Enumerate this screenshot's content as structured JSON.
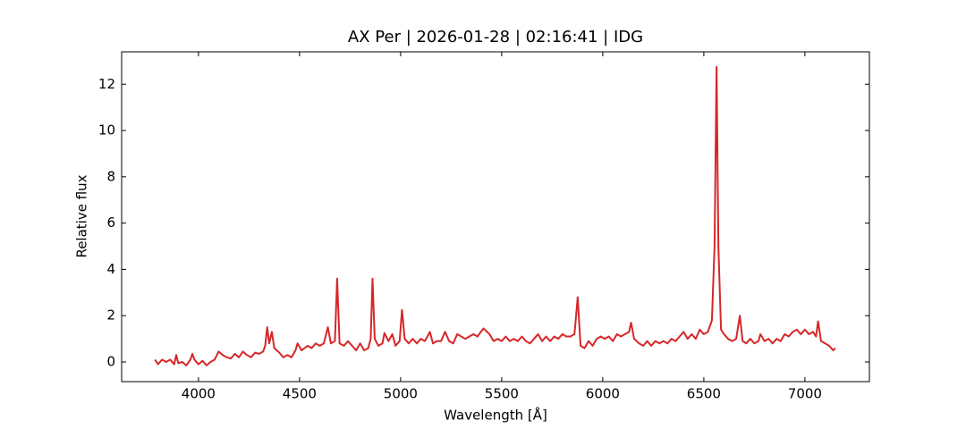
{
  "chart_data": {
    "type": "line",
    "title": "AX Per | 2026-01-28 | 02:16:41 | IDG",
    "xlabel": "Wavelength [Å]",
    "ylabel": "Relative flux",
    "color": "#d62728",
    "xlim": [
      3620,
      7319
    ],
    "ylim": [
      -0.85,
      13.4
    ],
    "xticks": [
      4000,
      4500,
      5000,
      5500,
      6000,
      6500,
      7000
    ],
    "yticks": [
      0,
      2,
      4,
      6,
      8,
      10,
      12
    ],
    "x": [
      3785,
      3800,
      3820,
      3840,
      3860,
      3880,
      3890,
      3900,
      3920,
      3940,
      3960,
      3970,
      3980,
      4000,
      4020,
      4040,
      4060,
      4080,
      4100,
      4120,
      4140,
      4160,
      4180,
      4200,
      4220,
      4240,
      4260,
      4280,
      4300,
      4320,
      4330,
      4340,
      4350,
      4363,
      4375,
      4400,
      4420,
      4440,
      4460,
      4480,
      4490,
      4510,
      4540,
      4560,
      4580,
      4600,
      4620,
      4640,
      4655,
      4675,
      4686,
      4698,
      4720,
      4740,
      4760,
      4780,
      4800,
      4820,
      4840,
      4852,
      4861,
      4872,
      4890,
      4910,
      4920,
      4940,
      4959,
      4975,
      4995,
      5007,
      5020,
      5040,
      5060,
      5080,
      5100,
      5120,
      5145,
      5160,
      5180,
      5200,
      5220,
      5240,
      5260,
      5280,
      5300,
      5320,
      5340,
      5360,
      5380,
      5410,
      5440,
      5460,
      5480,
      5500,
      5520,
      5540,
      5560,
      5580,
      5600,
      5620,
      5640,
      5660,
      5680,
      5700,
      5720,
      5740,
      5760,
      5780,
      5800,
      5820,
      5840,
      5860,
      5876,
      5890,
      5910,
      5930,
      5950,
      5970,
      5990,
      6010,
      6030,
      6050,
      6070,
      6090,
      6110,
      6130,
      6140,
      6155,
      6180,
      6200,
      6220,
      6240,
      6260,
      6280,
      6300,
      6320,
      6340,
      6360,
      6380,
      6400,
      6420,
      6440,
      6460,
      6480,
      6500,
      6520,
      6540,
      6553,
      6563,
      6572,
      6585,
      6600,
      6620,
      6640,
      6660,
      6678,
      6692,
      6710,
      6730,
      6750,
      6770,
      6780,
      6800,
      6820,
      6840,
      6860,
      6880,
      6900,
      6920,
      6940,
      6960,
      6980,
      7000,
      7020,
      7040,
      7055,
      7065,
      7080,
      7100,
      7120,
      7140,
      7150
    ],
    "values": [
      0.1,
      -0.1,
      0.1,
      0.0,
      0.1,
      -0.1,
      0.3,
      -0.05,
      0.0,
      -0.15,
      0.1,
      0.35,
      0.1,
      -0.1,
      0.05,
      -0.15,
      0.0,
      0.1,
      0.45,
      0.3,
      0.2,
      0.15,
      0.35,
      0.2,
      0.45,
      0.3,
      0.2,
      0.4,
      0.35,
      0.45,
      0.7,
      1.5,
      0.8,
      1.3,
      0.6,
      0.4,
      0.2,
      0.3,
      0.2,
      0.5,
      0.8,
      0.5,
      0.7,
      0.6,
      0.8,
      0.7,
      0.8,
      1.5,
      0.8,
      0.9,
      3.6,
      0.8,
      0.7,
      0.9,
      0.7,
      0.5,
      0.8,
      0.5,
      0.6,
      1.0,
      3.6,
      1.0,
      0.7,
      0.8,
      1.25,
      0.9,
      1.2,
      0.7,
      0.9,
      2.25,
      1.0,
      0.8,
      1.0,
      0.8,
      1.0,
      0.9,
      1.3,
      0.8,
      0.9,
      0.9,
      1.3,
      0.9,
      0.8,
      1.2,
      1.1,
      1.0,
      1.1,
      1.2,
      1.1,
      1.45,
      1.2,
      0.9,
      1.0,
      0.9,
      1.1,
      0.9,
      1.0,
      0.9,
      1.1,
      0.9,
      0.8,
      1.0,
      1.2,
      0.9,
      1.1,
      0.9,
      1.1,
      1.0,
      1.2,
      1.1,
      1.1,
      1.2,
      2.8,
      0.7,
      0.6,
      0.9,
      0.7,
      1.0,
      1.1,
      1.0,
      1.1,
      0.9,
      1.2,
      1.1,
      1.2,
      1.3,
      1.7,
      1.0,
      0.8,
      0.7,
      0.9,
      0.7,
      0.9,
      0.8,
      0.9,
      0.8,
      1.0,
      0.9,
      1.1,
      1.3,
      1.0,
      1.2,
      1.0,
      1.4,
      1.2,
      1.3,
      1.8,
      5.0,
      12.75,
      5.0,
      1.4,
      1.2,
      1.0,
      0.9,
      1.0,
      2.0,
      0.9,
      0.8,
      1.0,
      0.8,
      0.9,
      1.2,
      0.9,
      1.0,
      0.8,
      1.0,
      0.9,
      1.2,
      1.1,
      1.3,
      1.4,
      1.2,
      1.4,
      1.2,
      1.3,
      1.1,
      1.75,
      0.9,
      0.8,
      0.7,
      0.5,
      0.6
    ]
  }
}
